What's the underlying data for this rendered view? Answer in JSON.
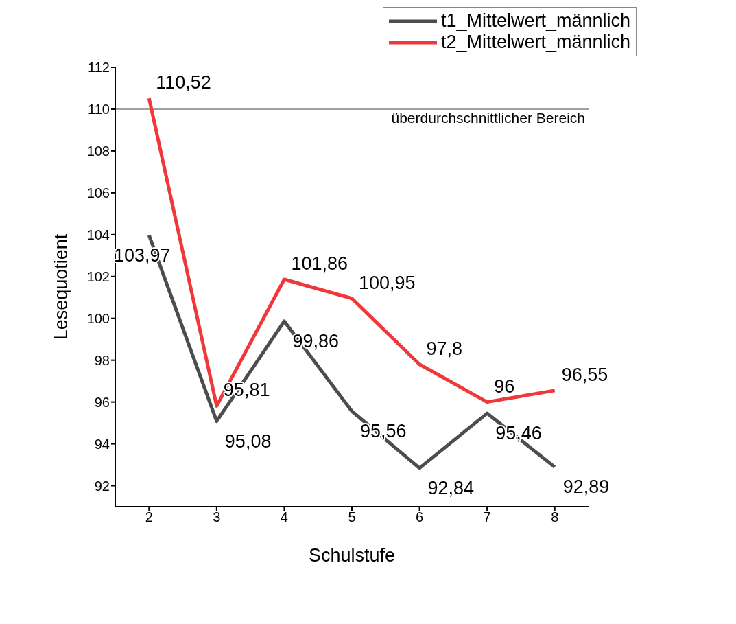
{
  "chart_data": {
    "type": "line",
    "xlabel": "Schulstufe",
    "ylabel": "Lesequotient",
    "x": [
      2,
      3,
      4,
      5,
      6,
      7,
      8
    ],
    "series": [
      {
        "name": "t1_Mittelwert_männlich",
        "color": "#4d4d4f",
        "values": [
          103.97,
          95.08,
          99.86,
          95.56,
          92.84,
          95.46,
          92.89
        ],
        "value_labels": [
          "103,97",
          "95,08",
          "99,86",
          "95,56",
          "92,84",
          "95,46",
          "92,89"
        ]
      },
      {
        "name": "t2_Mittelwert_männlich",
        "color": "#f0373a",
        "values": [
          110.52,
          95.81,
          101.86,
          100.95,
          97.8,
          96,
          96.55
        ],
        "value_labels": [
          "110,52",
          "95,81",
          "101,86",
          "100,95",
          "97,8",
          "96",
          "96,55"
        ]
      }
    ],
    "xlim": [
      1.5,
      8.5
    ],
    "xticks": [
      2,
      3,
      4,
      5,
      6,
      7,
      8
    ],
    "ylim": [
      91,
      112
    ],
    "yticks": [
      92,
      94,
      96,
      98,
      100,
      102,
      104,
      106,
      108,
      110,
      112
    ],
    "ref_lines": [
      {
        "axis": "y",
        "value": 110,
        "label": "überdurchschnittlicher Bereich",
        "color": "#808080"
      }
    ],
    "legend": "top right",
    "marker": "none",
    "line_style": "solid",
    "grid": false
  }
}
